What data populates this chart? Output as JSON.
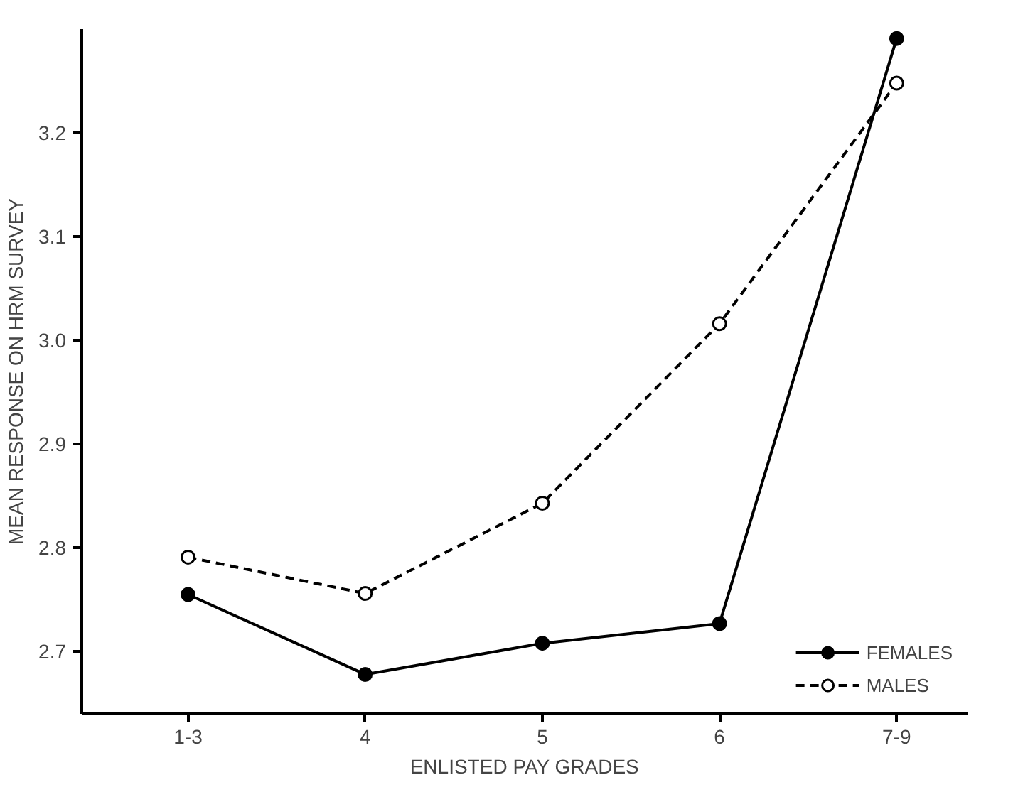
{
  "chart_data": {
    "type": "line",
    "xlabel": "ENLISTED PAY GRADES",
    "ylabel": "MEAN RESPONSE ON HRM SURVEY",
    "categories": [
      "1-3",
      "4",
      "5",
      "6",
      "7-9"
    ],
    "series": [
      {
        "name": "FEMALES",
        "color": "#000000",
        "line_style": "solid",
        "values": [
          2.755,
          2.678,
          2.708,
          2.727,
          3.291
        ]
      },
      {
        "name": "MALES",
        "color": "#000000",
        "line_style": "dashed",
        "values": [
          2.791,
          2.756,
          2.843,
          3.016,
          3.248
        ]
      }
    ],
    "ylim": [
      2.64,
      3.3
    ],
    "yticks": [
      2.7,
      2.8,
      2.9,
      {
        "value": 3.0,
        "label": "3.0"
      },
      3.1,
      3.2
    ],
    "marker": "circle",
    "grid": false,
    "legend": "bottom right"
  }
}
